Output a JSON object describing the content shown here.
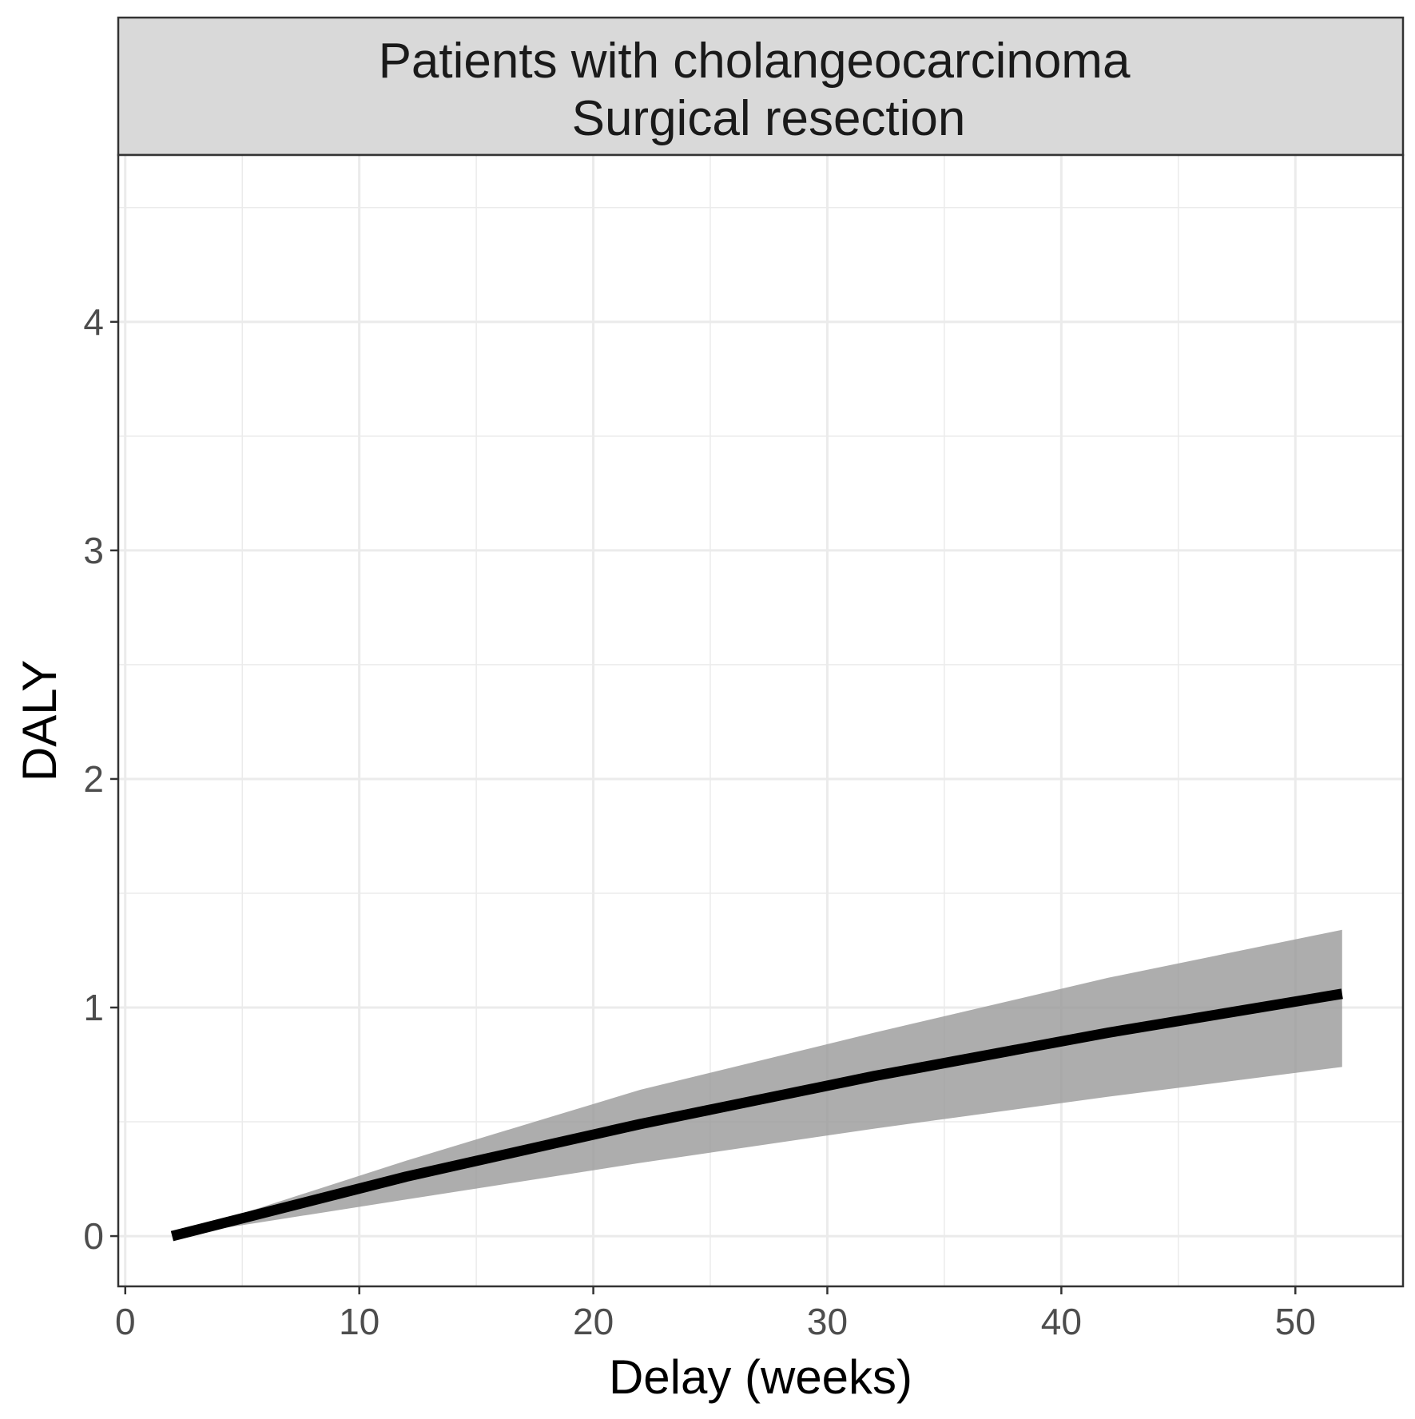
{
  "chart_data": {
    "type": "line",
    "facet_title_lines": [
      "Patients with cholangeocarcinoma",
      "Surgical resection"
    ],
    "xlabel": "Delay (weeks)",
    "ylabel": "DALY",
    "xlim": [
      -0.3,
      54.6
    ],
    "ylim": [
      -0.22,
      4.73
    ],
    "x_ticks": [
      0,
      10,
      20,
      30,
      40,
      50
    ],
    "y_ticks": [
      0,
      1,
      2,
      3,
      4
    ],
    "x_minor": [
      5,
      15,
      25,
      35,
      45
    ],
    "y_minor": [
      0.5,
      1.5,
      2.5,
      3.5,
      4.5
    ],
    "grid": true,
    "colors": {
      "line": "#000000",
      "ribbon": "#999999",
      "strip_bg": "#d9d9d9",
      "grid": "#ebebeb",
      "panel_border": "#333333"
    },
    "series": [
      {
        "x": [
          2,
          12,
          22,
          32,
          42,
          52
        ],
        "y": [
          0.0,
          0.26,
          0.49,
          0.7,
          0.89,
          1.06
        ],
        "lower": [
          0.0,
          0.16,
          0.32,
          0.47,
          0.61,
          0.74
        ],
        "upper": [
          0.0,
          0.33,
          0.64,
          0.89,
          1.13,
          1.34
        ]
      }
    ]
  }
}
